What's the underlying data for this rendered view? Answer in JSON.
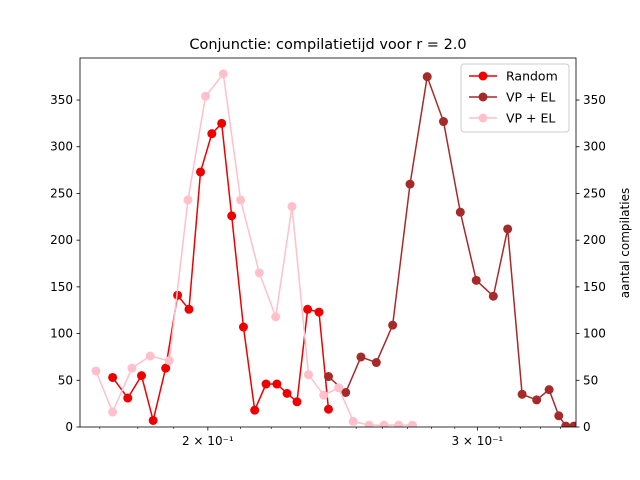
{
  "chart_data": {
    "type": "line",
    "title": "Conjunctie: compilatietijd voor r = 2.0",
    "xlabel": "",
    "ylabel_left": "",
    "ylabel_right": "aantal compilaties",
    "xscale": "log",
    "xlim": [
      0.165,
      0.348
    ],
    "ylim": [
      0,
      395
    ],
    "x_ticks": [
      {
        "value": 0.2,
        "label": "2 × 10⁻¹"
      },
      {
        "value": 0.3,
        "label": "3 × 10⁻¹"
      }
    ],
    "y_ticks": [
      0,
      50,
      100,
      150,
      200,
      250,
      300,
      350
    ],
    "legend_position": "upper right",
    "grid": false,
    "series": [
      {
        "name": "Random",
        "color": "#ee0000",
        "points": [
          [
            0.1733,
            53
          ],
          [
            0.1773,
            31
          ],
          [
            0.181,
            55
          ],
          [
            0.1842,
            7
          ],
          [
            0.1877,
            63
          ],
          [
            0.1911,
            141
          ],
          [
            0.1944,
            126
          ],
          [
            0.1978,
            273
          ],
          [
            0.2012,
            314
          ],
          [
            0.2042,
            325
          ],
          [
            0.2073,
            226
          ],
          [
            0.211,
            107
          ],
          [
            0.2146,
            18
          ],
          [
            0.2183,
            46
          ],
          [
            0.2219,
            46
          ],
          [
            0.2253,
            36
          ],
          [
            0.2287,
            27
          ],
          [
            0.2324,
            126
          ],
          [
            0.2364,
            123
          ],
          [
            0.2398,
            19
          ]
        ]
      },
      {
        "name": "VP + EL",
        "color": "#a52a2a",
        "points": [
          [
            0.2398,
            54
          ],
          [
            0.2461,
            37
          ],
          [
            0.2518,
            75
          ],
          [
            0.2577,
            69
          ],
          [
            0.2641,
            109
          ],
          [
            0.2711,
            260
          ],
          [
            0.2782,
            375
          ],
          [
            0.2851,
            327
          ],
          [
            0.2924,
            230
          ],
          [
            0.2995,
            157
          ],
          [
            0.3073,
            140
          ],
          [
            0.314,
            212
          ],
          [
            0.3209,
            35
          ],
          [
            0.328,
            29
          ],
          [
            0.3342,
            40
          ],
          [
            0.3391,
            12
          ],
          [
            0.3427,
            1
          ],
          [
            0.3469,
            1
          ],
          [
            0.3524,
            1
          ],
          [
            0.358,
            1
          ]
        ]
      },
      {
        "name": "VP + EL",
        "color": "#ffc0cb",
        "points": [
          [
            0.169,
            60
          ],
          [
            0.1733,
            16
          ],
          [
            0.1784,
            63
          ],
          [
            0.1834,
            76
          ],
          [
            0.1887,
            71
          ],
          [
            0.1941,
            243
          ],
          [
            0.1993,
            354
          ],
          [
            0.2047,
            378
          ],
          [
            0.2101,
            243
          ],
          [
            0.2161,
            165
          ],
          [
            0.2215,
            118
          ],
          [
            0.227,
            236
          ],
          [
            0.2327,
            56
          ],
          [
            0.2381,
            34
          ],
          [
            0.2435,
            42
          ],
          [
            0.2489,
            6
          ],
          [
            0.2549,
            2
          ],
          [
            0.2607,
            2
          ],
          [
            0.2665,
            2
          ],
          [
            0.2721,
            2
          ]
        ]
      }
    ]
  }
}
